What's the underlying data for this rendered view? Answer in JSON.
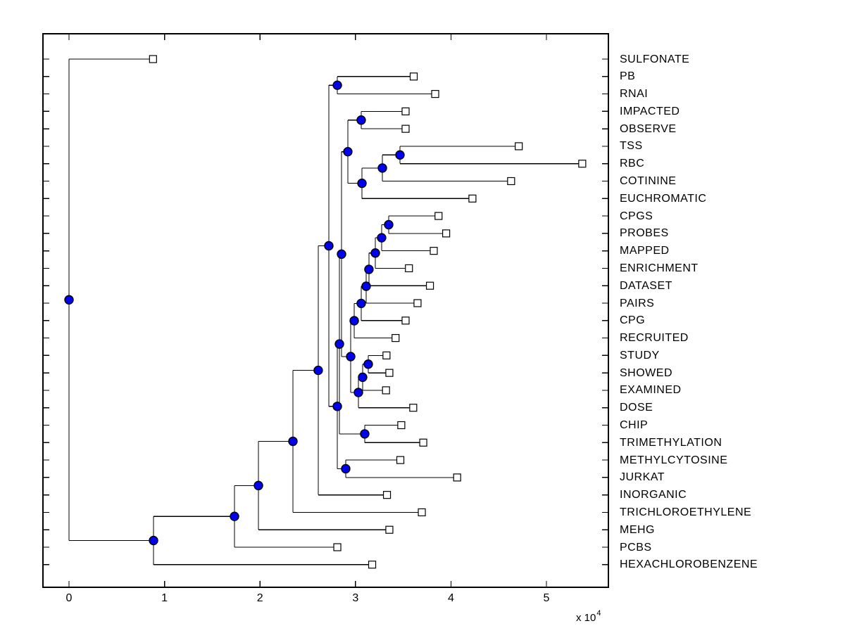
{
  "figure": {
    "background": "#ffffff",
    "line_color": "#000000",
    "border_color": "#000000",
    "branch_node_fill": "#0000f0",
    "leaf_node_fill": "#ffffff",
    "marker_edge_color": "#000000",
    "text_color": "#000000"
  },
  "axis": {
    "x_tick_labels": [
      "0",
      "1",
      "2",
      "3",
      "4",
      "5"
    ],
    "x_tick_values": [
      0,
      10000,
      20000,
      30000,
      40000,
      50000
    ],
    "multiplier_base": "x 10",
    "multiplier_exponent": "4"
  },
  "chart_data": {
    "type": "dendrogram",
    "subtype": "phylogenetic-tree",
    "orientation": "horizontal, root at left, leaves labeled on right",
    "title": "",
    "xlabel": "",
    "ylabel": "",
    "grid": false,
    "legend": false,
    "x_axis": {
      "tick_labels": [
        "0",
        "1",
        "2",
        "3",
        "4",
        "5"
      ],
      "tick_values": [
        0,
        10000,
        20000,
        30000,
        40000,
        50000
      ],
      "scale_note": "x 10^4",
      "visible_range_approx": [
        -2730,
        56490
      ]
    },
    "marker_styles": {
      "internal_node": "filled blue circle",
      "leaf_node": "open white square"
    },
    "leaves": [
      {
        "name": "SULFONATE",
        "distance": 8800
      },
      {
        "name": "PB",
        "distance": 36100
      },
      {
        "name": "RNAI",
        "distance": 38350
      },
      {
        "name": "IMPACTED",
        "distance": 35250
      },
      {
        "name": "OBSERVE",
        "distance": 35250
      },
      {
        "name": "TSS",
        "distance": 47100
      },
      {
        "name": "RBC",
        "distance": 53750
      },
      {
        "name": "COTININE",
        "distance": 46300
      },
      {
        "name": "EUCHROMATIC",
        "distance": 42250
      },
      {
        "name": "CPGS",
        "distance": 38700
      },
      {
        "name": "PROBES",
        "distance": 39500
      },
      {
        "name": "MAPPED",
        "distance": 38200
      },
      {
        "name": "ENRICHMENT",
        "distance": 35600
      },
      {
        "name": "DATASET",
        "distance": 37800
      },
      {
        "name": "PAIRS",
        "distance": 36500
      },
      {
        "name": "CPG",
        "distance": 35250
      },
      {
        "name": "RECRUITED",
        "distance": 34200
      },
      {
        "name": "STUDY",
        "distance": 33250
      },
      {
        "name": "SHOWED",
        "distance": 33550
      },
      {
        "name": "EXAMINED",
        "distance": 33200
      },
      {
        "name": "DOSE",
        "distance": 36050
      },
      {
        "name": "CHIP",
        "distance": 34800
      },
      {
        "name": "TRIMETHYLATION",
        "distance": 37100
      },
      {
        "name": "METHYLCYTOSINE",
        "distance": 34700
      },
      {
        "name": "JURKAT",
        "distance": 40650
      },
      {
        "name": "INORGANIC",
        "distance": 33300
      },
      {
        "name": "TRICHLOROETHYLENE",
        "distance": 36950
      },
      {
        "name": "MEHG",
        "distance": 33550
      },
      {
        "name": "PCBS",
        "distance": 28100
      },
      {
        "name": "HEXACHLOROBENZENE",
        "distance": 31750
      }
    ],
    "clades": [
      {
        "id": "u1",
        "distance": 28100,
        "children": [
          "PB",
          "RNAI"
        ]
      },
      {
        "id": "u2",
        "distance": 30600,
        "children": [
          "IMPACTED",
          "OBSERVE"
        ]
      },
      {
        "id": "u3",
        "distance": 34660,
        "children": [
          "TSS",
          "RBC"
        ]
      },
      {
        "id": "u4",
        "distance": 32820,
        "children": [
          "u3",
          "COTININE"
        ]
      },
      {
        "id": "u5",
        "distance": 30680,
        "children": [
          "u4",
          "EUCHROMATIC"
        ]
      },
      {
        "id": "u6",
        "distance": 29200,
        "children": [
          "u2",
          "u5"
        ]
      },
      {
        "id": "a",
        "distance": 33480,
        "children": [
          "CPGS",
          "PROBES"
        ]
      },
      {
        "id": "b",
        "distance": 32740,
        "children": [
          "a",
          "MAPPED"
        ]
      },
      {
        "id": "c",
        "distance": 32080,
        "children": [
          "b",
          "ENRICHMENT"
        ]
      },
      {
        "id": "d",
        "distance": 31410,
        "children": [
          "c",
          "DATASET"
        ]
      },
      {
        "id": "e",
        "distance": 31120,
        "children": [
          "d",
          "PAIRS"
        ]
      },
      {
        "id": "f",
        "distance": 30600,
        "children": [
          "e",
          "CPG"
        ]
      },
      {
        "id": "g",
        "distance": 29870,
        "children": [
          "f",
          "RECRUITED"
        ]
      },
      {
        "id": "i",
        "distance": 31340,
        "children": [
          "STUDY",
          "SHOWED"
        ]
      },
      {
        "id": "j",
        "distance": 30750,
        "children": [
          "i",
          "EXAMINED"
        ]
      },
      {
        "id": "l",
        "distance": 30310,
        "children": [
          "j",
          "DOSE"
        ]
      },
      {
        "id": "k",
        "distance": 29500,
        "children": [
          "g",
          "l"
        ]
      },
      {
        "id": "x",
        "distance": 28540,
        "children": [
          "u6",
          "k"
        ]
      },
      {
        "id": "o",
        "distance": 30970,
        "children": [
          "CHIP",
          "TRIMETHYLATION"
        ]
      },
      {
        "id": "h",
        "distance": 28320,
        "children": [
          "x",
          "o"
        ]
      },
      {
        "id": "p",
        "distance": 28980,
        "children": [
          "METHYLCYTOSINE",
          "JURKAT"
        ]
      },
      {
        "id": "n",
        "distance": 28100,
        "children": [
          "h",
          "p"
        ]
      },
      {
        "id": "bigup",
        "distance": 27210,
        "children": [
          "u1",
          "n"
        ]
      },
      {
        "id": "m",
        "distance": 26100,
        "children": [
          "bigup",
          "INORGANIC"
        ]
      },
      {
        "id": "q",
        "distance": 23450,
        "children": [
          "m",
          "TRICHLOROETHYLENE"
        ]
      },
      {
        "id": "r",
        "distance": 19840,
        "children": [
          "q",
          "MEHG"
        ]
      },
      {
        "id": "s",
        "distance": 17330,
        "children": [
          "r",
          "PCBS"
        ]
      },
      {
        "id": "t",
        "distance": 8850,
        "children": [
          "s",
          "HEXACHLOROBENZENE"
        ]
      },
      {
        "id": "root",
        "distance": 0,
        "children": [
          "SULFONATE",
          "t"
        ]
      }
    ],
    "root": "root"
  }
}
